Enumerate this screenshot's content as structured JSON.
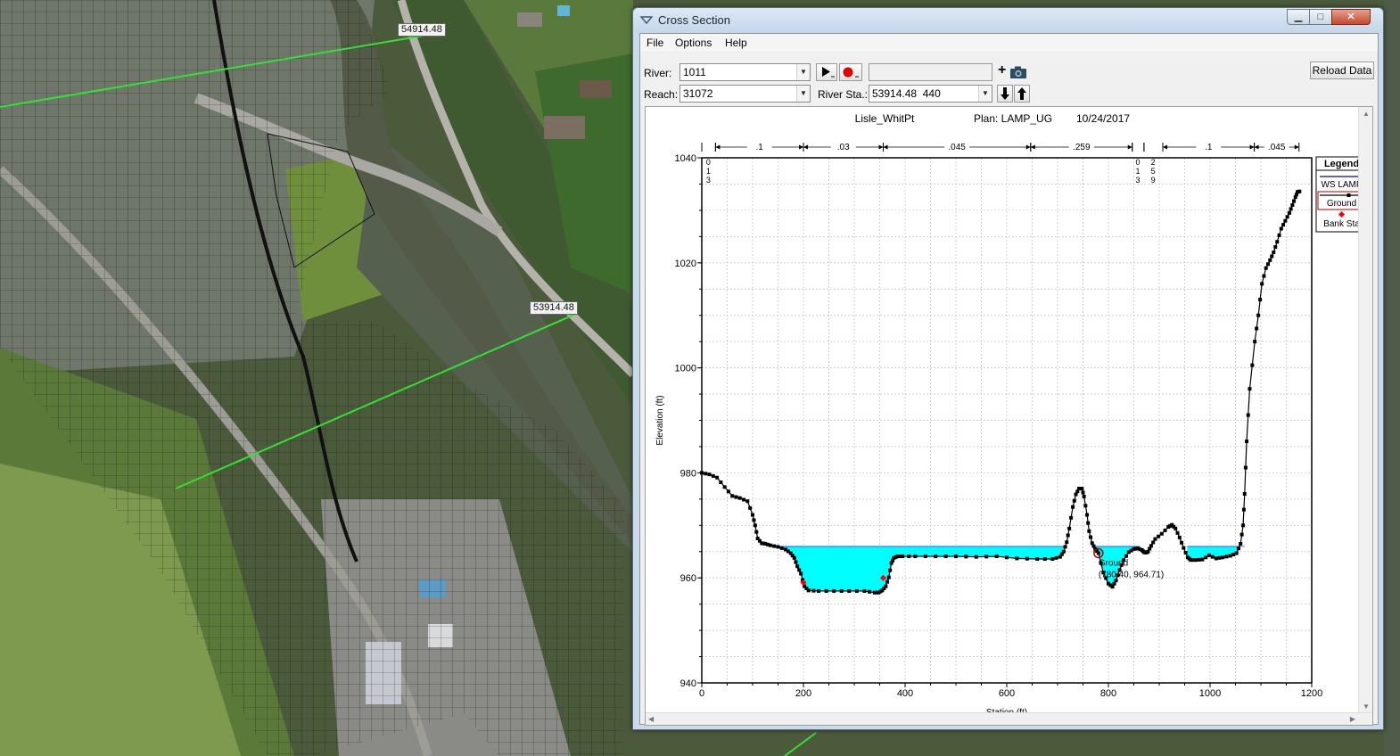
{
  "map": {
    "labels": [
      "54914.48",
      "53914.48"
    ]
  },
  "window": {
    "title": "Cross Section",
    "controls": {
      "minimize": "▁",
      "maximize": "□",
      "close": "✕"
    },
    "menu": [
      "File",
      "Options",
      "Help"
    ],
    "toolbar": {
      "river_label": "River:",
      "river_value": "1011",
      "reach_label": "Reach:",
      "reach_value": "31072",
      "river_sta_label": "River Sta.:",
      "river_sta_value": "53914.48  440",
      "reload_label": "Reload Data",
      "plus": "+"
    }
  },
  "chart_data": {
    "type": "line",
    "title_parts": [
      "Lisle_WhitPt",
      "Plan: LAMP_UG",
      "10/24/2017"
    ],
    "xlabel": "Station (ft)",
    "ylabel": "Elevation (ft)",
    "xlim": [
      0,
      1200
    ],
    "ylim": [
      940,
      1040
    ],
    "xticks": [
      0,
      200,
      400,
      600,
      800,
      1000,
      1200
    ],
    "yticks": [
      940,
      960,
      980,
      1000,
      1020,
      1040
    ],
    "grid": true,
    "legend": {
      "title": "Legend",
      "placement": "top-right outside",
      "entries": [
        "WS LAMP",
        "Ground",
        "Bank Sta"
      ]
    },
    "mannings_n": [
      {
        "from": 0,
        "to": 27,
        "label": ""
      },
      {
        "from": 27,
        "to": 200,
        "label": ".1"
      },
      {
        "from": 200,
        "to": 357,
        "label": ".03"
      },
      {
        "from": 357,
        "to": 647,
        "label": ".045"
      },
      {
        "from": 647,
        "to": 847,
        "label": ".259"
      },
      {
        "from": 847,
        "to": 870,
        "label": ""
      },
      {
        "from": 870,
        "to": 907,
        "label": ""
      },
      {
        "from": 907,
        "to": 1087,
        "label": ".1"
      },
      {
        "from": 1087,
        "to": 1175,
        "label": ".045"
      }
    ],
    "n_value_stacks": [
      {
        "x": 13,
        "digits": [
          "0",
          "1",
          "3"
        ]
      },
      {
        "x": 858,
        "digits": [
          "0",
          "1",
          "3"
        ]
      },
      {
        "x": 888,
        "digits": [
          "2",
          "5",
          "9"
        ]
      }
    ],
    "series": [
      {
        "name": "Ground",
        "color": "#000000",
        "x": [
          0,
          15,
          30,
          45,
          60,
          75,
          90,
          100,
          105,
          110,
          118,
          125,
          135,
          150,
          165,
          175,
          182,
          188,
          195,
          202,
          210,
          230,
          260,
          290,
          320,
          340,
          348,
          355,
          362,
          368,
          373,
          378,
          385,
          395,
          420,
          460,
          500,
          540,
          580,
          620,
          660,
          690,
          705,
          712,
          718,
          723,
          730,
          736,
          742,
          748,
          752,
          758,
          762,
          768,
          774,
          780.4,
          790,
          800,
          808,
          815,
          822,
          830,
          840,
          850,
          858,
          866,
          870,
          874,
          878,
          884,
          892,
          905,
          918,
          925,
          932,
          940,
          948,
          956,
          962,
          972,
          985,
          998,
          1012,
          1025,
          1040,
          1052,
          1060,
          1065,
          1068,
          1072,
          1078,
          1088,
          1095,
          1102,
          1110,
          1118,
          1125,
          1132,
          1140,
          1148,
          1156,
          1162,
          1168,
          1172,
          1176
        ],
        "y": [
          980,
          979.7,
          979.1,
          977.3,
          975.6,
          975.2,
          974.6,
          972,
          970,
          967.5,
          966.6,
          966.5,
          966.2,
          965.9,
          965.4,
          964.7,
          963.8,
          962.2,
          960.8,
          958.4,
          957.6,
          957.5,
          957.5,
          957.5,
          957.5,
          957.2,
          957.2,
          957.6,
          958.4,
          960.1,
          962.8,
          963.8,
          964.1,
          964.1,
          964.1,
          964.1,
          964.1,
          964.0,
          964.1,
          963.7,
          963.6,
          963.6,
          964.0,
          965.0,
          966.8,
          969.4,
          973.5,
          975.9,
          977.0,
          977.0,
          975.5,
          972.0,
          968.9,
          966.6,
          965.5,
          964.71,
          961.0,
          958.9,
          958.3,
          959.5,
          961.5,
          963.4,
          964.9,
          965.5,
          965.6,
          965.3,
          964.9,
          964.8,
          965.0,
          966.1,
          967.4,
          968.4,
          969.7,
          970.1,
          969.4,
          967.7,
          965.7,
          963.9,
          963.4,
          963.4,
          963.5,
          964.3,
          963.7,
          963.9,
          964.2,
          964.7,
          966.5,
          970.0,
          976.0,
          986.0,
          996.0,
          1005.0,
          1010.0,
          1016.0,
          1019.0,
          1020.5,
          1022.0,
          1024.0,
          1026.5,
          1028.0,
          1029.5,
          1031.0,
          1032.5,
          1033.5,
          1033.6
        ]
      },
      {
        "name": "WS LAMP",
        "color": "#00ffff",
        "regions": [
          {
            "x0": 145,
            "x1": 712,
            "elevation": 965.98
          },
          {
            "x0": 772,
            "x1": 862,
            "elevation": 965.98
          },
          {
            "x0": 955,
            "x1": 1068,
            "elevation": 965.98
          }
        ]
      },
      {
        "name": "Bank Sta",
        "color": "#ff0000",
        "x": [
          200,
          357
        ],
        "y": [
          959.1,
          960.0
        ]
      }
    ],
    "annotation": {
      "series": "Ground",
      "x": 780.4,
      "y": 964.71,
      "lines": [
        "Ground",
        "(780.40, 964.71)"
      ]
    }
  }
}
